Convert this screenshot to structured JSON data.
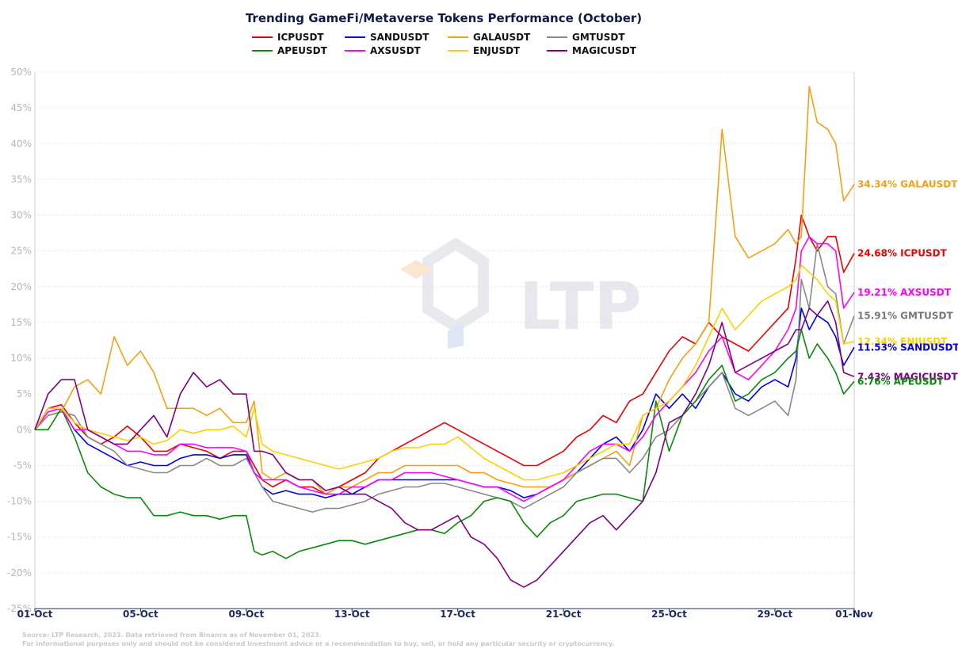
{
  "chart_data": {
    "type": "line",
    "title": "Trending GameFi/Metaverse Tokens Performance (October)",
    "xlabel": "",
    "ylabel": "",
    "ylim": [
      -25,
      50
    ],
    "y_ticks": [
      -25,
      -20,
      -15,
      -10,
      -5,
      0,
      5,
      10,
      15,
      20,
      25,
      30,
      35,
      40,
      45,
      50
    ],
    "y_tick_labels": [
      "-25%",
      "-20%",
      "-15%",
      "-10%",
      "-5%",
      "0%",
      "5%",
      "10%",
      "15%",
      "20%",
      "25%",
      "30%",
      "35%",
      "40%",
      "45%",
      "50%"
    ],
    "xlim": [
      1,
      32
    ],
    "x_ticks": [
      1,
      5,
      9,
      13,
      17,
      21,
      25,
      29,
      32
    ],
    "x_tick_labels": [
      "01-Oct",
      "05-Oct",
      "09-Oct",
      "13-Oct",
      "17-Oct",
      "21-Oct",
      "25-Oct",
      "29-Oct",
      "01-Nov"
    ],
    "grid": true,
    "legend_position": "top-center",
    "series": [
      {
        "name": "ICPUSDT",
        "color": "#ee0000",
        "x": [
          1,
          1.5,
          2,
          2.5,
          3,
          3.5,
          4,
          4.5,
          5,
          5.5,
          6,
          6.5,
          7,
          7.5,
          8,
          8.5,
          9,
          9.3,
          9.6,
          10,
          10.5,
          11,
          11.5,
          12,
          12.5,
          13,
          13.5,
          14,
          14.5,
          15,
          15.5,
          16,
          16.5,
          17,
          17.5,
          18,
          18.5,
          19,
          19.5,
          20,
          20.5,
          21,
          21.5,
          22,
          22.5,
          23,
          23.5,
          24,
          24.5,
          25,
          25.5,
          26,
          26.5,
          27,
          27.5,
          28,
          28.5,
          29,
          29.5,
          29.8,
          30,
          30.3,
          30.6,
          31,
          31.3,
          31.6,
          32
        ],
        "values": [
          0,
          3,
          3.5,
          1,
          -1,
          -2,
          -1,
          0.5,
          -1,
          -3,
          -3,
          -2,
          -2.5,
          -3,
          -4,
          -3,
          -3,
          -5,
          -7,
          -8,
          -7,
          -8,
          -8,
          -9,
          -8,
          -7,
          -6,
          -4,
          -3,
          -2,
          -1,
          0,
          1,
          0,
          -1,
          -2,
          -3,
          -4,
          -5,
          -5,
          -4,
          -3,
          -1,
          0,
          2,
          1,
          4,
          5,
          8,
          11,
          13,
          12,
          15,
          13,
          12,
          11,
          13,
          15,
          17,
          24,
          30,
          27,
          25,
          27,
          27,
          22,
          24.68
        ]
      },
      {
        "name": "SANDUSDT",
        "color": "#0000ee",
        "x": [
          1,
          1.5,
          2,
          2.5,
          3,
          3.5,
          4,
          4.5,
          5,
          5.5,
          6,
          6.5,
          7,
          7.5,
          8,
          8.5,
          9,
          9.3,
          9.6,
          10,
          10.5,
          11,
          11.5,
          12,
          12.5,
          13,
          13.5,
          14,
          14.5,
          15,
          15.5,
          16,
          16.5,
          17,
          17.5,
          18,
          18.5,
          19,
          19.5,
          20,
          20.5,
          21,
          21.5,
          22,
          22.5,
          23,
          23.5,
          24,
          24.5,
          25,
          25.5,
          26,
          26.5,
          27,
          27.5,
          28,
          28.5,
          29,
          29.5,
          29.8,
          30,
          30.3,
          30.6,
          31,
          31.3,
          31.6,
          32
        ],
        "values": [
          0,
          3,
          3,
          0,
          -2,
          -3,
          -4,
          -5,
          -4.5,
          -5,
          -5,
          -4,
          -3.5,
          -3.5,
          -4,
          -3.5,
          -3.5,
          -6,
          -8,
          -9,
          -8.5,
          -9,
          -9,
          -9.5,
          -9,
          -9,
          -8,
          -7,
          -7,
          -7,
          -7,
          -7,
          -7,
          -7,
          -7.5,
          -8,
          -8,
          -8.5,
          -9.5,
          -9,
          -8,
          -7,
          -6,
          -4,
          -2,
          -1,
          -3,
          0,
          5,
          3,
          5,
          3,
          6,
          8,
          5,
          4,
          6,
          7,
          6,
          10,
          17,
          14,
          16,
          15,
          13,
          9,
          11.53
        ]
      },
      {
        "name": "GALAUSDT",
        "color": "#f5a012",
        "x": [
          1,
          1.5,
          2,
          2.5,
          3,
          3.5,
          4,
          4.5,
          5,
          5.5,
          6,
          6.5,
          7,
          7.5,
          8,
          8.5,
          9,
          9.3,
          9.6,
          10,
          10.5,
          11,
          11.5,
          12,
          12.5,
          13,
          13.5,
          14,
          14.5,
          15,
          15.5,
          16,
          16.5,
          17,
          17.5,
          18,
          18.5,
          19,
          19.5,
          20,
          20.5,
          21,
          21.5,
          22,
          22.5,
          23,
          23.5,
          24,
          24.5,
          25,
          25.5,
          26,
          26.5,
          27,
          27.5,
          28,
          28.5,
          29,
          29.5,
          29.8,
          30,
          30.3,
          30.6,
          31,
          31.3,
          31.6,
          32
        ],
        "values": [
          0,
          2,
          2.5,
          6,
          7,
          5,
          13,
          9,
          11,
          8,
          3,
          3,
          3,
          2,
          3,
          1,
          1,
          4,
          -6,
          -7,
          -6,
          -7,
          -7,
          -9,
          -8,
          -8,
          -7,
          -6,
          -6,
          -5,
          -5,
          -5,
          -5,
          -5,
          -6,
          -6,
          -7,
          -7.5,
          -8,
          -8,
          -8,
          -7,
          -6,
          -5,
          -4,
          -3,
          -5,
          2,
          3,
          7,
          10,
          12,
          15,
          42,
          27,
          24,
          25,
          26,
          28,
          26,
          27,
          48,
          43,
          42,
          40,
          32,
          34.34
        ]
      },
      {
        "name": "GMTUSDT",
        "color": "#888888",
        "x": [
          1,
          1.5,
          2,
          2.5,
          3,
          3.5,
          4,
          4.5,
          5,
          5.5,
          6,
          6.5,
          7,
          7.5,
          8,
          8.5,
          9,
          9.3,
          9.6,
          10,
          10.5,
          11,
          11.5,
          12,
          12.5,
          13,
          13.5,
          14,
          14.5,
          15,
          15.5,
          16,
          16.5,
          17,
          17.5,
          18,
          18.5,
          19,
          19.5,
          20,
          20.5,
          21,
          21.5,
          22,
          22.5,
          23,
          23.5,
          24,
          24.5,
          25,
          25.5,
          26,
          26.5,
          27,
          27.5,
          28,
          28.5,
          29,
          29.5,
          29.8,
          30,
          30.3,
          30.6,
          31,
          31.3,
          31.6,
          32
        ],
        "values": [
          0,
          2,
          2.5,
          2,
          -1,
          -2,
          -3,
          -5,
          -5.5,
          -6,
          -6,
          -5,
          -5,
          -4,
          -5,
          -5,
          -4,
          -6,
          -8,
          -10,
          -10.5,
          -11,
          -11.5,
          -11,
          -11,
          -10.5,
          -10,
          -9,
          -8.5,
          -8,
          -8,
          -7.5,
          -7.5,
          -8,
          -8.5,
          -9,
          -9.5,
          -10,
          -11,
          -10,
          -9,
          -8,
          -6,
          -5,
          -4,
          -4,
          -6,
          -4,
          -1,
          0,
          2,
          4,
          6,
          8,
          3,
          2,
          3,
          4,
          2,
          7,
          21,
          17,
          26,
          20,
          19,
          12,
          15.91
        ]
      },
      {
        "name": "APEUSDT",
        "color": "#0a8a0a",
        "x": [
          1,
          1.5,
          2,
          2.5,
          3,
          3.5,
          4,
          4.5,
          5,
          5.5,
          6,
          6.5,
          7,
          7.5,
          8,
          8.5,
          9,
          9.3,
          9.6,
          10,
          10.5,
          11,
          11.5,
          12,
          12.5,
          13,
          13.5,
          14,
          14.5,
          15,
          15.5,
          16,
          16.5,
          17,
          17.5,
          18,
          18.5,
          19,
          19.5,
          20,
          20.5,
          21,
          21.5,
          22,
          22.5,
          23,
          23.5,
          24,
          24.5,
          25,
          25.5,
          26,
          26.5,
          27,
          27.5,
          28,
          28.5,
          29,
          29.5,
          29.8,
          30,
          30.3,
          30.6,
          31,
          31.3,
          31.6,
          32
        ],
        "values": [
          0,
          0,
          3,
          -1,
          -6,
          -8,
          -9,
          -9.5,
          -9.5,
          -12,
          -12,
          -11.5,
          -12,
          -12,
          -12.5,
          -12,
          -12,
          -17,
          -17.5,
          -17,
          -18,
          -17,
          -16.5,
          -16,
          -15.5,
          -15.5,
          -16,
          -15.5,
          -15,
          -14.5,
          -14,
          -14,
          -14.5,
          -13,
          -12,
          -10,
          -9.5,
          -10,
          -13,
          -15,
          -13,
          -12,
          -10,
          -9.5,
          -9,
          -9,
          -9.5,
          -10,
          4,
          -3,
          2,
          4,
          7,
          9,
          4,
          5,
          7,
          8,
          10,
          11,
          14,
          10,
          12,
          10,
          8,
          5,
          6.76
        ]
      },
      {
        "name": "AXSUSDT",
        "color": "#ff00ff",
        "x": [
          1,
          1.5,
          2,
          2.5,
          3,
          3.5,
          4,
          4.5,
          5,
          5.5,
          6,
          6.5,
          7,
          7.5,
          8,
          8.5,
          9,
          9.3,
          9.6,
          10,
          10.5,
          11,
          11.5,
          12,
          12.5,
          13,
          13.5,
          14,
          14.5,
          15,
          15.5,
          16,
          16.5,
          17,
          17.5,
          18,
          18.5,
          19,
          19.5,
          20,
          20.5,
          21,
          21.5,
          22,
          22.5,
          23,
          23.5,
          24,
          24.5,
          25,
          25.5,
          26,
          26.5,
          27,
          27.5,
          28,
          28.5,
          29,
          29.5,
          29.8,
          30,
          30.3,
          30.6,
          31,
          31.3,
          31.6,
          32
        ],
        "values": [
          0,
          2.5,
          3,
          0,
          0,
          -1,
          -2,
          -3,
          -3,
          -3.5,
          -3.5,
          -2,
          -2,
          -2.5,
          -2.5,
          -2.5,
          -3,
          -6,
          -7,
          -7,
          -7,
          -8,
          -8.5,
          -9,
          -9,
          -8,
          -8,
          -7,
          -7,
          -6,
          -6,
          -6,
          -6.5,
          -7,
          -7.5,
          -8,
          -8,
          -9,
          -10,
          -9,
          -8,
          -7,
          -5,
          -3,
          -2,
          -2,
          -3,
          -1,
          2,
          4,
          6,
          8,
          11,
          13,
          8,
          7,
          9,
          11,
          14,
          17,
          25,
          27,
          26,
          26,
          25,
          17,
          19.21
        ]
      },
      {
        "name": "ENJUSDT",
        "color": "#ffd000",
        "x": [
          1,
          1.5,
          2,
          2.5,
          3,
          3.5,
          4,
          4.5,
          5,
          5.5,
          6,
          6.5,
          7,
          7.5,
          8,
          8.5,
          9,
          9.3,
          9.6,
          10,
          10.5,
          11,
          11.5,
          12,
          12.5,
          13,
          13.5,
          14,
          14.5,
          15,
          15.5,
          16,
          16.5,
          17,
          17.5,
          18,
          18.5,
          19,
          19.5,
          20,
          20.5,
          21,
          21.5,
          22,
          22.5,
          23,
          23.5,
          24,
          24.5,
          25,
          25.5,
          26,
          26.5,
          27,
          27.5,
          28,
          28.5,
          29,
          29.5,
          29.8,
          30,
          30.3,
          30.6,
          31,
          31.3,
          31.6,
          32
        ],
        "values": [
          0,
          3,
          3,
          1,
          0,
          -0.5,
          -1,
          -1.5,
          -1,
          -2,
          -1.5,
          0,
          -0.5,
          0,
          0,
          0.5,
          -1,
          3,
          -2,
          -3,
          -3.5,
          -4,
          -4.5,
          -5,
          -5.5,
          -5,
          -4.5,
          -4,
          -3,
          -2.5,
          -2.5,
          -2,
          -2,
          -1,
          -2.5,
          -4,
          -5,
          -6,
          -7,
          -7,
          -6.5,
          -6,
          -5,
          -4,
          -3,
          -2,
          -2,
          2,
          3,
          4,
          6,
          9,
          13,
          17,
          14,
          16,
          18,
          19,
          20,
          21,
          23,
          22,
          21,
          19,
          18,
          12,
          12.34
        ]
      },
      {
        "name": "MAGICUSDT",
        "color": "#800080",
        "x": [
          1,
          1.5,
          2,
          2.5,
          3,
          3.5,
          4,
          4.5,
          5,
          5.5,
          6,
          6.5,
          7,
          7.5,
          8,
          8.5,
          9,
          9.3,
          9.6,
          10,
          10.5,
          11,
          11.5,
          12,
          12.5,
          13,
          13.5,
          14,
          14.5,
          15,
          15.5,
          16,
          16.5,
          17,
          17.5,
          18,
          18.5,
          19,
          19.5,
          20,
          20.5,
          21,
          21.5,
          22,
          22.5,
          23,
          23.5,
          24,
          24.5,
          25,
          25.5,
          26,
          26.5,
          27,
          27.5,
          28,
          28.5,
          29,
          29.5,
          29.8,
          30,
          30.3,
          30.6,
          31,
          31.3,
          31.6,
          32
        ],
        "values": [
          0,
          5,
          7,
          7,
          0,
          -1,
          -2,
          -2,
          0,
          2,
          -1,
          5,
          8,
          6,
          7,
          5,
          5,
          -3,
          -3,
          -3.5,
          -6,
          -7,
          -7,
          -8.5,
          -8,
          -9,
          -9,
          -10,
          -11,
          -13,
          -14,
          -14,
          -13,
          -12,
          -15,
          -16,
          -18,
          -21,
          -22,
          -21,
          -19,
          -17,
          -15,
          -13,
          -12,
          -14,
          -12,
          -10,
          -6,
          1,
          2,
          5,
          9,
          15,
          8,
          9,
          10,
          11,
          12,
          14,
          14,
          17,
          16,
          18,
          15,
          8,
          7.43
        ]
      }
    ],
    "end_labels": [
      {
        "series": "GALAUSDT",
        "text": "34.34% GALAUSDT",
        "color": "#f5a012",
        "value": 34.34
      },
      {
        "series": "ICPUSDT",
        "text": "24.68% ICPUSDT",
        "color": "#ee0000",
        "value": 24.68
      },
      {
        "series": "AXSUSDT",
        "text": "19.21% AXSUSDT",
        "color": "#ff00ff",
        "value": 19.21
      },
      {
        "series": "GMTUSDT",
        "text": "15.91% GMTUSDT",
        "color": "#777777",
        "value": 15.91
      },
      {
        "series": "ENJUSDT",
        "text": "12.34% ENJUSDT",
        "color": "#ffd000",
        "value": 12.34
      },
      {
        "series": "SANDUSDT",
        "text": "11.53% SANDUSDT",
        "color": "#0000ee",
        "value": 11.53
      },
      {
        "series": "MAGICUSDT",
        "text": "7.43% MAGICUSDT",
        "color": "#800080",
        "value": 7.43
      },
      {
        "series": "APEUSDT",
        "text": "6.76% APEUSDT",
        "color": "#0a8a0a",
        "value": 6.76
      }
    ],
    "legend_order": [
      "ICPUSDT",
      "SANDUSDT",
      "GALAUSDT",
      "GMTUSDT",
      "APEUSDT",
      "AXSUSDT",
      "ENJUSDT",
      "MAGICUSDT"
    ]
  },
  "watermark": {
    "text": "LTP"
  },
  "footer": {
    "line1": "Source: LTP Research, 2023. Data retrieved from Binance as of November 01, 2023.",
    "line2": "For informational purposes only and should not be considered investment advice or a recommendation to buy, sell, or hold any particular security or cryptocurrency."
  }
}
